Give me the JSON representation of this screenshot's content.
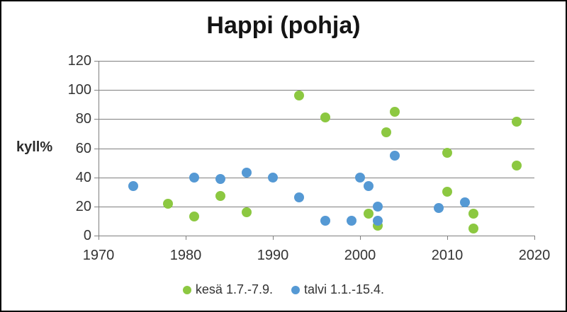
{
  "chart_data": {
    "type": "scatter",
    "title": "Happi (pohja)",
    "ylabel": "kyll%",
    "xlabel": "",
    "xlim": [
      1970,
      2020
    ],
    "ylim": [
      0,
      120
    ],
    "x_ticks": [
      1970,
      1980,
      1990,
      2000,
      2010,
      2020
    ],
    "y_ticks": [
      0,
      20,
      40,
      60,
      80,
      100,
      120
    ],
    "grid": "horizontal",
    "legend_position": "bottom-center",
    "series": [
      {
        "name": "kesä 1.7.-7.9.",
        "color": "#8cc841",
        "marker": "circle",
        "points": [
          [
            1978,
            22
          ],
          [
            1981,
            13
          ],
          [
            1984,
            27
          ],
          [
            1987,
            16
          ],
          [
            1993,
            96
          ],
          [
            1996,
            81
          ],
          [
            2001,
            15
          ],
          [
            2002,
            7
          ],
          [
            2003,
            71
          ],
          [
            2004,
            85
          ],
          [
            2010,
            30
          ],
          [
            2010,
            57
          ],
          [
            2013,
            5
          ],
          [
            2013,
            15
          ],
          [
            2018,
            48
          ],
          [
            2018,
            78
          ]
        ]
      },
      {
        "name": "talvi 1.1.-15.4.",
        "color": "#5599d4",
        "marker": "circle",
        "points": [
          [
            1974,
            34
          ],
          [
            1981,
            40
          ],
          [
            1984,
            39
          ],
          [
            1987,
            43
          ],
          [
            1990,
            40
          ],
          [
            1993,
            26
          ],
          [
            1996,
            10
          ],
          [
            1999,
            10
          ],
          [
            2000,
            40
          ],
          [
            2001,
            34
          ],
          [
            2002,
            20
          ],
          [
            2002,
            10
          ],
          [
            2004,
            55
          ],
          [
            2009,
            19
          ],
          [
            2012,
            23
          ]
        ]
      }
    ],
    "colors": {
      "summer": "#8cc841",
      "winter": "#5599d4",
      "gridline": "#7f7f7f",
      "text": "#333333",
      "border": "#000000"
    }
  }
}
